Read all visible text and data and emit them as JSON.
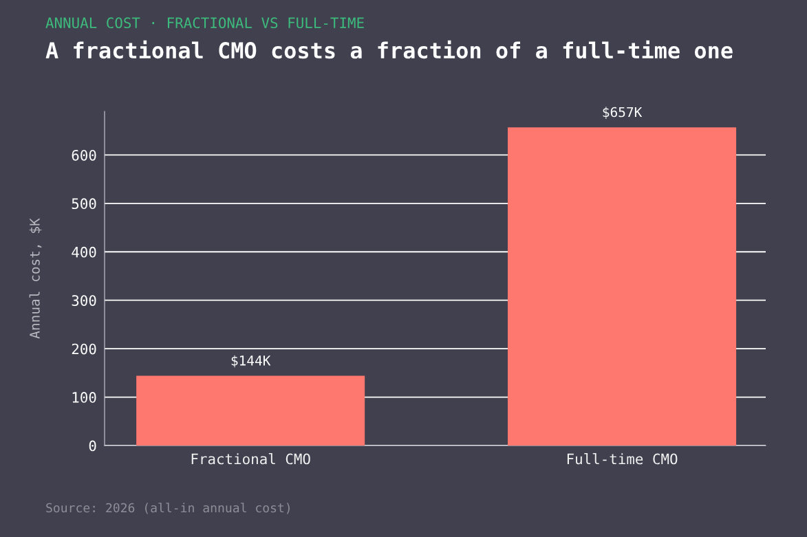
{
  "chart_data": {
    "type": "bar",
    "subtitle": "ANNUAL COST · FRACTIONAL VS FULL-TIME",
    "title": "A fractional CMO costs a fraction of a full-time one",
    "ylabel": "Annual cost, $K",
    "categories": [
      "Fractional CMO",
      "Full-time CMO"
    ],
    "values": [
      144,
      657
    ],
    "color": "#ff7870",
    "value_labels": [
      "$144K",
      "$657K"
    ],
    "ylim": [
      0,
      690
    ],
    "yticks": [
      0,
      100,
      200,
      300,
      400,
      500,
      600
    ],
    "grid": "y",
    "annotations": [
      "Source: 2026 (all-in annual cost)"
    ]
  }
}
